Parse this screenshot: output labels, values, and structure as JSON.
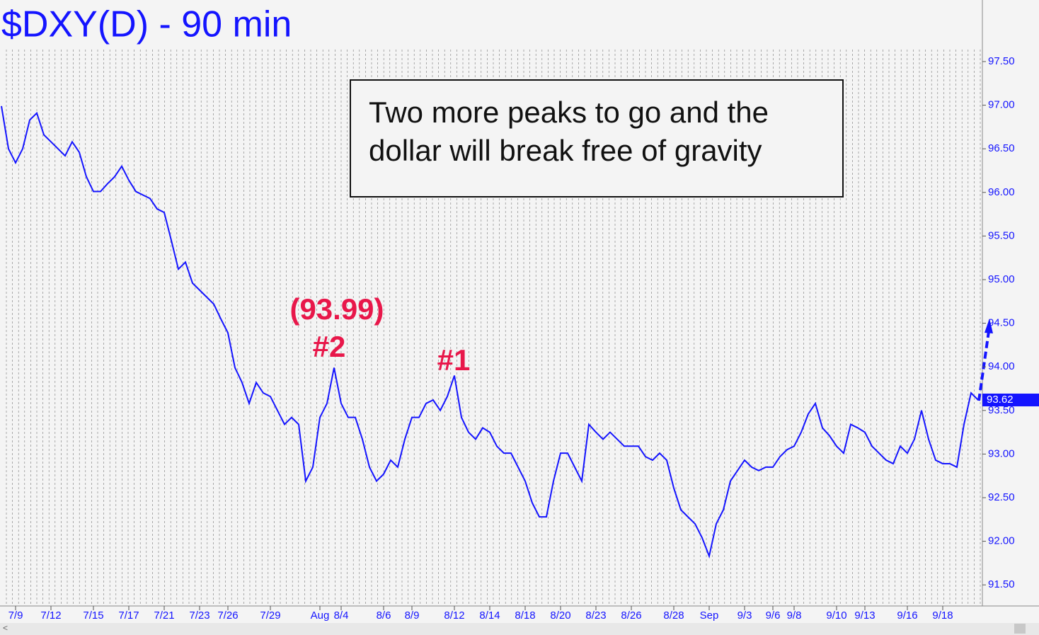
{
  "chart_data": {
    "type": "line",
    "title": "$DXY(D) - 90 min",
    "annotations": [
      "(93.99)",
      "#2",
      "#1"
    ],
    "note_lines": [
      "Two more peaks to go and the",
      "dollar will break free of gravity"
    ],
    "last_price": 93.62,
    "color": "#1414ff",
    "categories": [
      null,
      null,
      "7/9",
      null,
      null,
      null,
      null,
      "7/12",
      null,
      null,
      null,
      null,
      null,
      "7/15",
      null,
      null,
      null,
      null,
      "7/17",
      null,
      null,
      null,
      null,
      "7/21",
      null,
      null,
      null,
      null,
      "7/23",
      null,
      null,
      null,
      "7/26",
      null,
      null,
      null,
      null,
      null,
      "7/29",
      null,
      null,
      null,
      null,
      null,
      null,
      "Aug",
      null,
      null,
      "8/4",
      null,
      null,
      null,
      null,
      null,
      "8/6",
      null,
      null,
      null,
      "8/9",
      null,
      null,
      null,
      null,
      null,
      "8/12",
      null,
      null,
      null,
      null,
      "8/14",
      null,
      null,
      null,
      null,
      "8/18",
      null,
      null,
      null,
      null,
      "8/20",
      null,
      null,
      null,
      null,
      "8/23",
      null,
      null,
      null,
      null,
      "8/26",
      null,
      null,
      null,
      null,
      null,
      "8/28",
      null,
      null,
      null,
      null,
      "Sep",
      null,
      null,
      null,
      null,
      "9/3",
      null,
      null,
      null,
      "9/6",
      null,
      null,
      "9/8",
      null,
      null,
      null,
      null,
      null,
      "9/10",
      null,
      null,
      null,
      "9/13",
      null,
      null,
      null,
      null,
      null,
      "9/16",
      null,
      null,
      null,
      null,
      "9/18",
      null,
      null,
      null,
      null,
      null
    ],
    "values": [
      96.99,
      96.5,
      96.34,
      96.5,
      96.83,
      96.91,
      96.66,
      96.58,
      96.5,
      96.42,
      96.58,
      96.46,
      96.18,
      96.01,
      96.01,
      96.1,
      96.18,
      96.3,
      96.14,
      96.01,
      95.97,
      95.93,
      95.81,
      95.77,
      95.45,
      95.12,
      95.2,
      94.96,
      94.88,
      94.8,
      94.72,
      94.55,
      94.39,
      93.99,
      93.82,
      93.58,
      93.82,
      93.7,
      93.66,
      93.5,
      93.34,
      93.42,
      93.34,
      92.69,
      92.85,
      93.42,
      93.58,
      93.99,
      93.58,
      93.42,
      93.42,
      93.17,
      92.85,
      92.69,
      92.77,
      92.93,
      92.85,
      93.17,
      93.42,
      93.42,
      93.58,
      93.62,
      93.5,
      93.66,
      93.9,
      93.42,
      93.25,
      93.17,
      93.3,
      93.25,
      93.09,
      93.01,
      93.01,
      92.85,
      92.69,
      92.44,
      92.28,
      92.28,
      92.69,
      93.01,
      93.01,
      92.85,
      92.69,
      93.34,
      93.25,
      93.17,
      93.25,
      93.17,
      93.09,
      93.09,
      93.09,
      92.97,
      92.93,
      93.01,
      92.93,
      92.61,
      92.36,
      92.28,
      92.2,
      92.04,
      91.83,
      92.2,
      92.36,
      92.69,
      92.81,
      92.93,
      92.85,
      92.81,
      92.85,
      92.85,
      92.97,
      93.05,
      93.09,
      93.25,
      93.46,
      93.58,
      93.3,
      93.21,
      93.09,
      93.01,
      93.34,
      93.3,
      93.25,
      93.09,
      93.01,
      92.93,
      92.89,
      93.09,
      93.01,
      93.17,
      93.5,
      93.17,
      92.93,
      92.89,
      92.89,
      92.85,
      93.34,
      93.7,
      93.62
    ],
    "ylim": [
      91.25,
      97.65
    ],
    "yticks": [
      {
        "value": 91.5,
        "label": "91.50"
      },
      {
        "value": 92,
        "label": "92.00"
      },
      {
        "value": 92.5,
        "label": "92.50"
      },
      {
        "value": 93,
        "label": "93.00"
      },
      {
        "value": 93.5,
        "label": "93.50"
      },
      {
        "value": 94,
        "label": "94.00"
      },
      {
        "value": 94.5,
        "label": "94.50"
      },
      {
        "value": 95,
        "label": "95.00"
      },
      {
        "value": 95.5,
        "label": "95.50"
      },
      {
        "value": 96,
        "label": "96.00"
      },
      {
        "value": 96.5,
        "label": "96.50"
      },
      {
        "value": 97,
        "label": "97.00"
      },
      {
        "value": 97.5,
        "label": "97.50"
      }
    ]
  }
}
